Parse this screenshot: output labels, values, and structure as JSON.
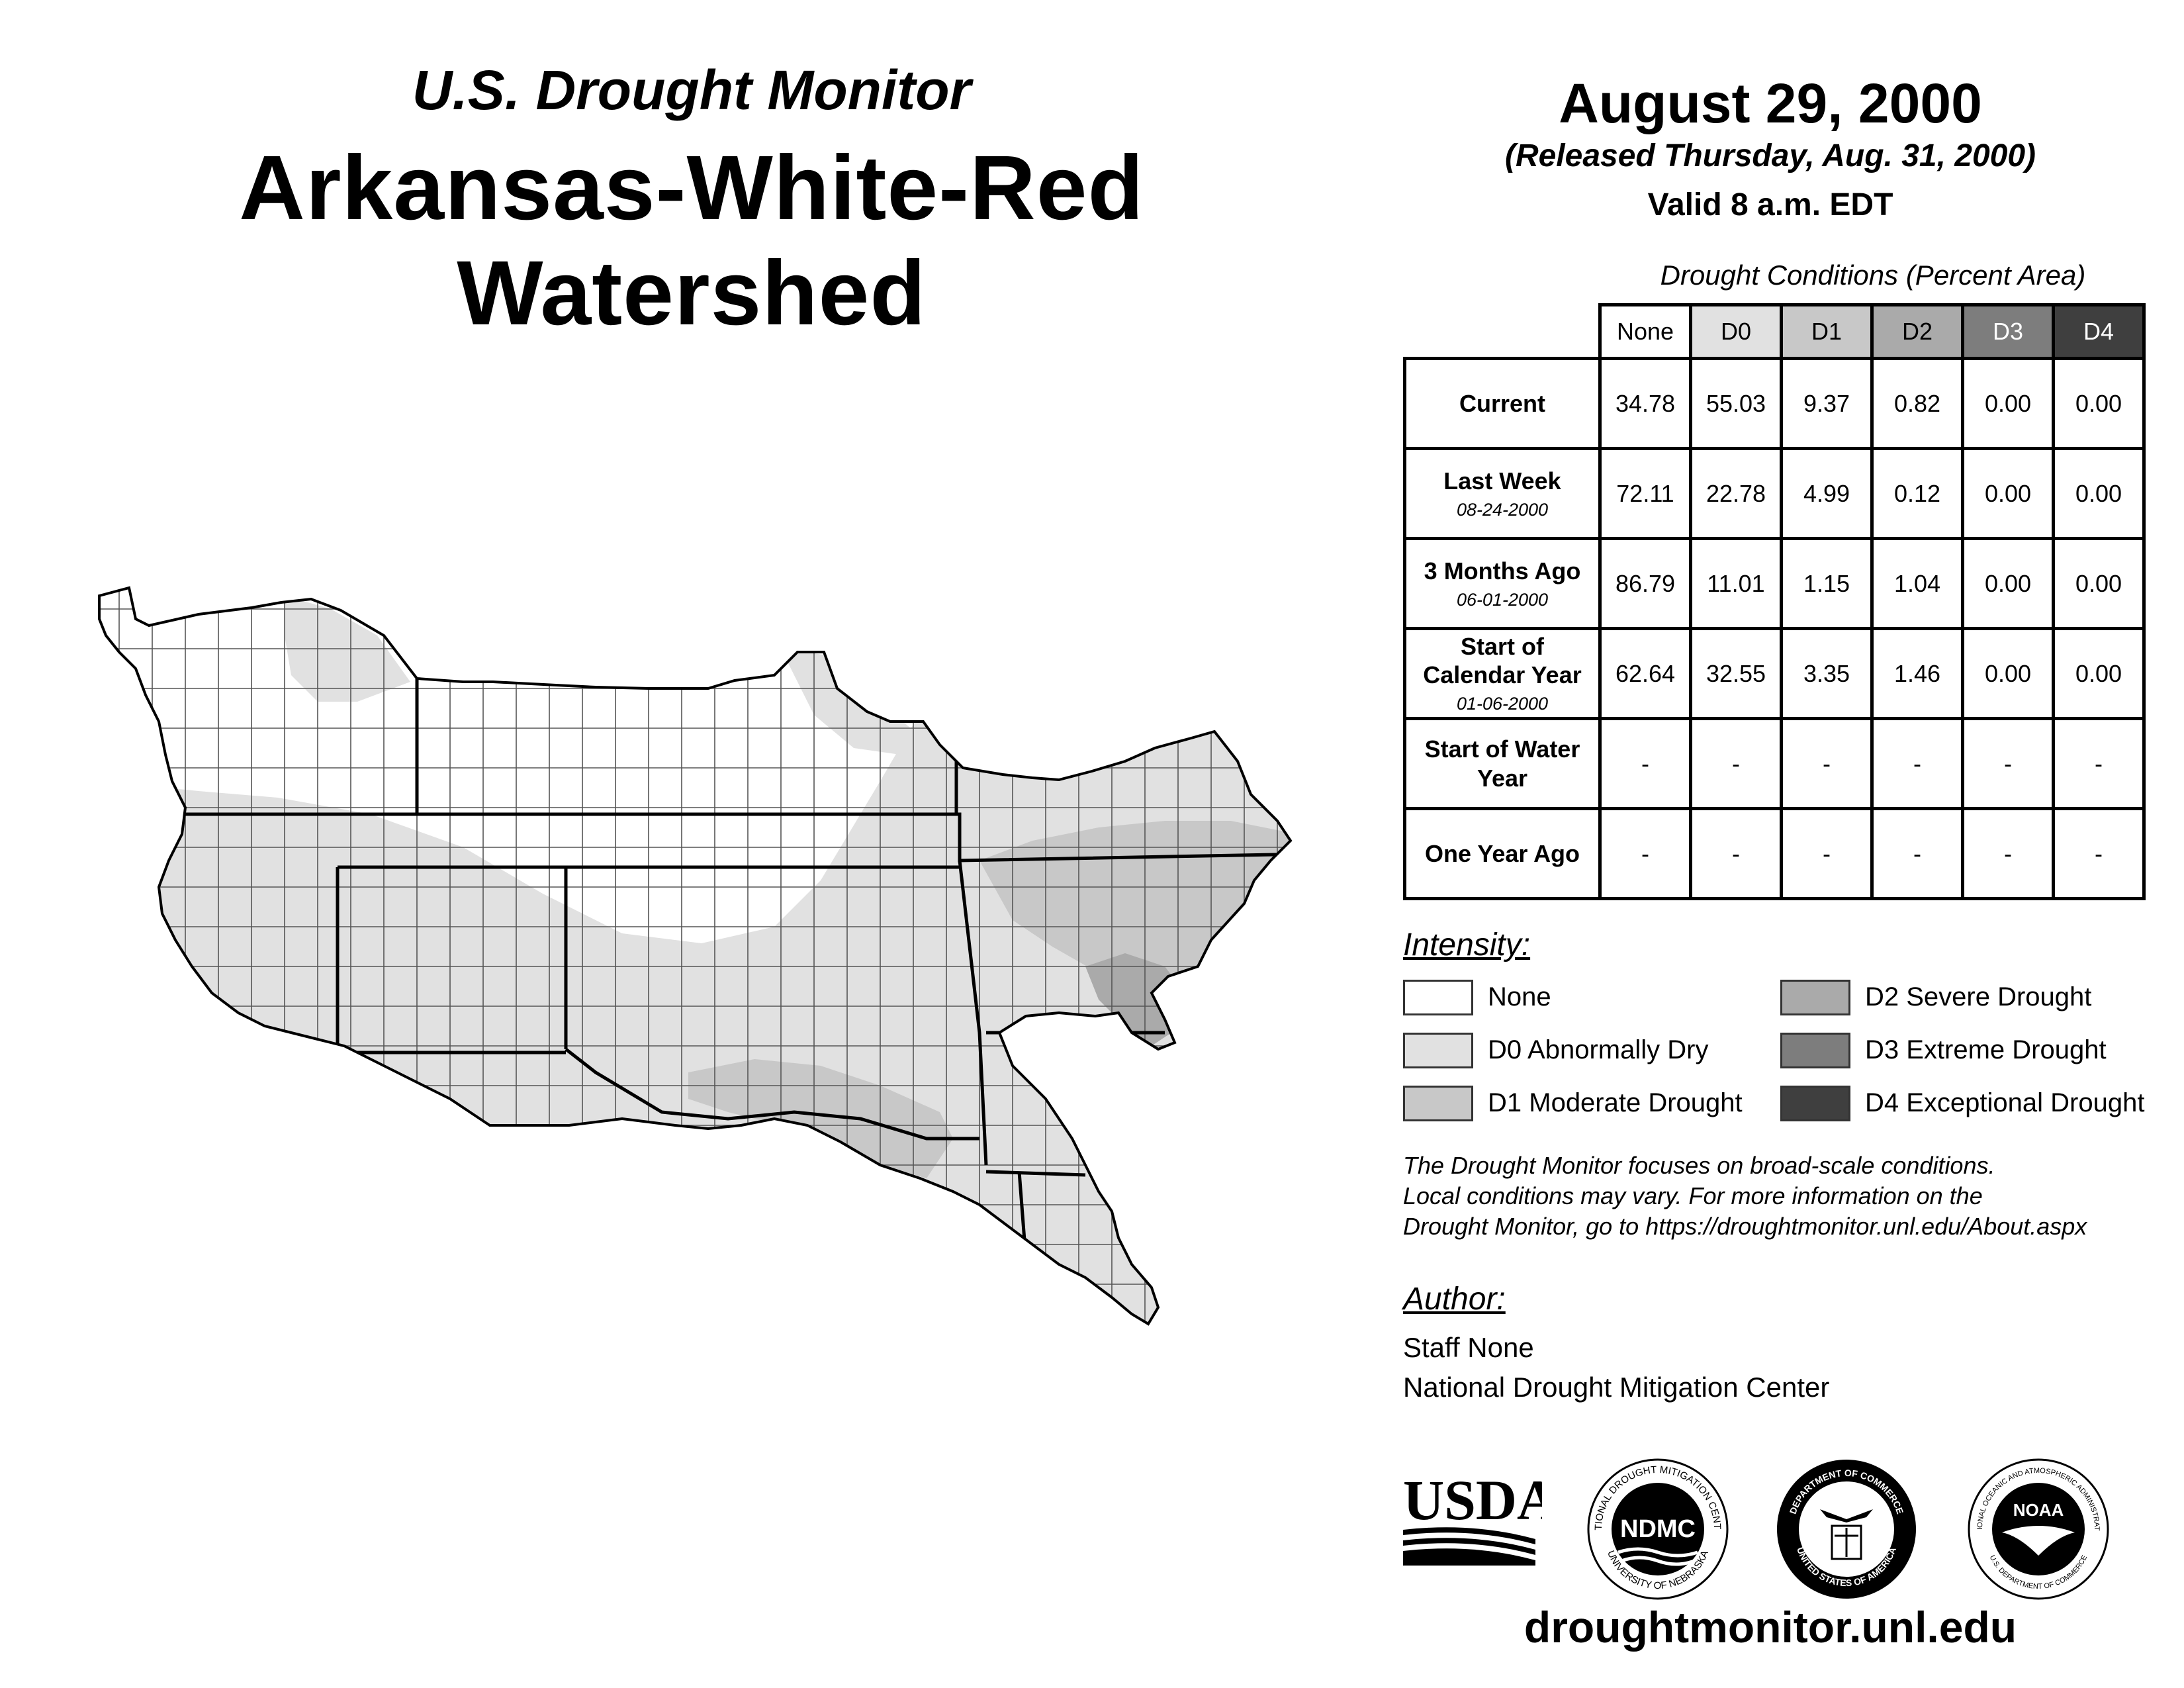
{
  "header": {
    "subtitle": "U.S. Drought Monitor",
    "title": "Arkansas-White-Red Watershed",
    "date": "August 29, 2000",
    "released": "(Released Thursday, Aug. 31, 2000)",
    "valid": "Valid 8 a.m. EDT"
  },
  "table": {
    "caption": "Drought Conditions (Percent Area)",
    "columns": [
      "None",
      "D0",
      "D1",
      "D2",
      "D3",
      "D4"
    ],
    "rows": [
      {
        "label": "Current",
        "sublabel": "",
        "values": [
          "34.78",
          "55.03",
          "9.37",
          "0.82",
          "0.00",
          "0.00"
        ]
      },
      {
        "label": "Last Week",
        "sublabel": "08-24-2000",
        "values": [
          "72.11",
          "22.78",
          "4.99",
          "0.12",
          "0.00",
          "0.00"
        ]
      },
      {
        "label": "3 Months Ago",
        "sublabel": "06-01-2000",
        "values": [
          "86.79",
          "11.01",
          "1.15",
          "1.04",
          "0.00",
          "0.00"
        ]
      },
      {
        "label": "Start of Calendar Year",
        "sublabel": "01-06-2000",
        "values": [
          "62.64",
          "32.55",
          "3.35",
          "1.46",
          "0.00",
          "0.00"
        ]
      },
      {
        "label": "Start of Water Year",
        "sublabel": "",
        "values": [
          "-",
          "-",
          "-",
          "-",
          "-",
          "-"
        ]
      },
      {
        "label": "One Year Ago",
        "sublabel": "",
        "values": [
          "-",
          "-",
          "-",
          "-",
          "-",
          "-"
        ]
      }
    ]
  },
  "legend": {
    "title": "Intensity:",
    "items": [
      {
        "label": "None",
        "color": "#ffffff"
      },
      {
        "label": "D0 Abnormally Dry",
        "color": "#e1e1e1"
      },
      {
        "label": "D1 Moderate Drought",
        "color": "#c8c8c8"
      },
      {
        "label": "D2 Severe Drought",
        "color": "#aaaaaa"
      },
      {
        "label": "D3 Extreme Drought",
        "color": "#7d7d7d"
      },
      {
        "label": "D4 Exceptional Drought",
        "color": "#3f3f3f"
      }
    ]
  },
  "note": {
    "line1": "The Drought Monitor focuses on broad-scale conditions.",
    "line2": "Local conditions may vary. For more information on the",
    "line3": "Drought Monitor, go to https://droughtmonitor.unl.edu/About.aspx"
  },
  "author": {
    "title": "Author:",
    "name": "Staff None",
    "org": "National Drought Mitigation Center"
  },
  "logos": {
    "usda": "USDA",
    "ndmc": "NDMC",
    "ndmc_ring_top": "NATIONAL DROUGHT MITIGATION CENTER",
    "ndmc_ring_bottom": "UNIVERSITY OF NEBRASKA",
    "doc_ring_top": "DEPARTMENT OF COMMERCE",
    "doc_ring_bottom": "UNITED STATES OF AMERICA",
    "noaa": "NOAA",
    "noaa_ring_top": "NATIONAL OCEANIC AND ATMOSPHERIC ADMINISTRATION",
    "noaa_ring_bottom": "U.S. DEPARTMENT OF COMMERCE"
  },
  "website": "droughtmonitor.unl.edu"
}
